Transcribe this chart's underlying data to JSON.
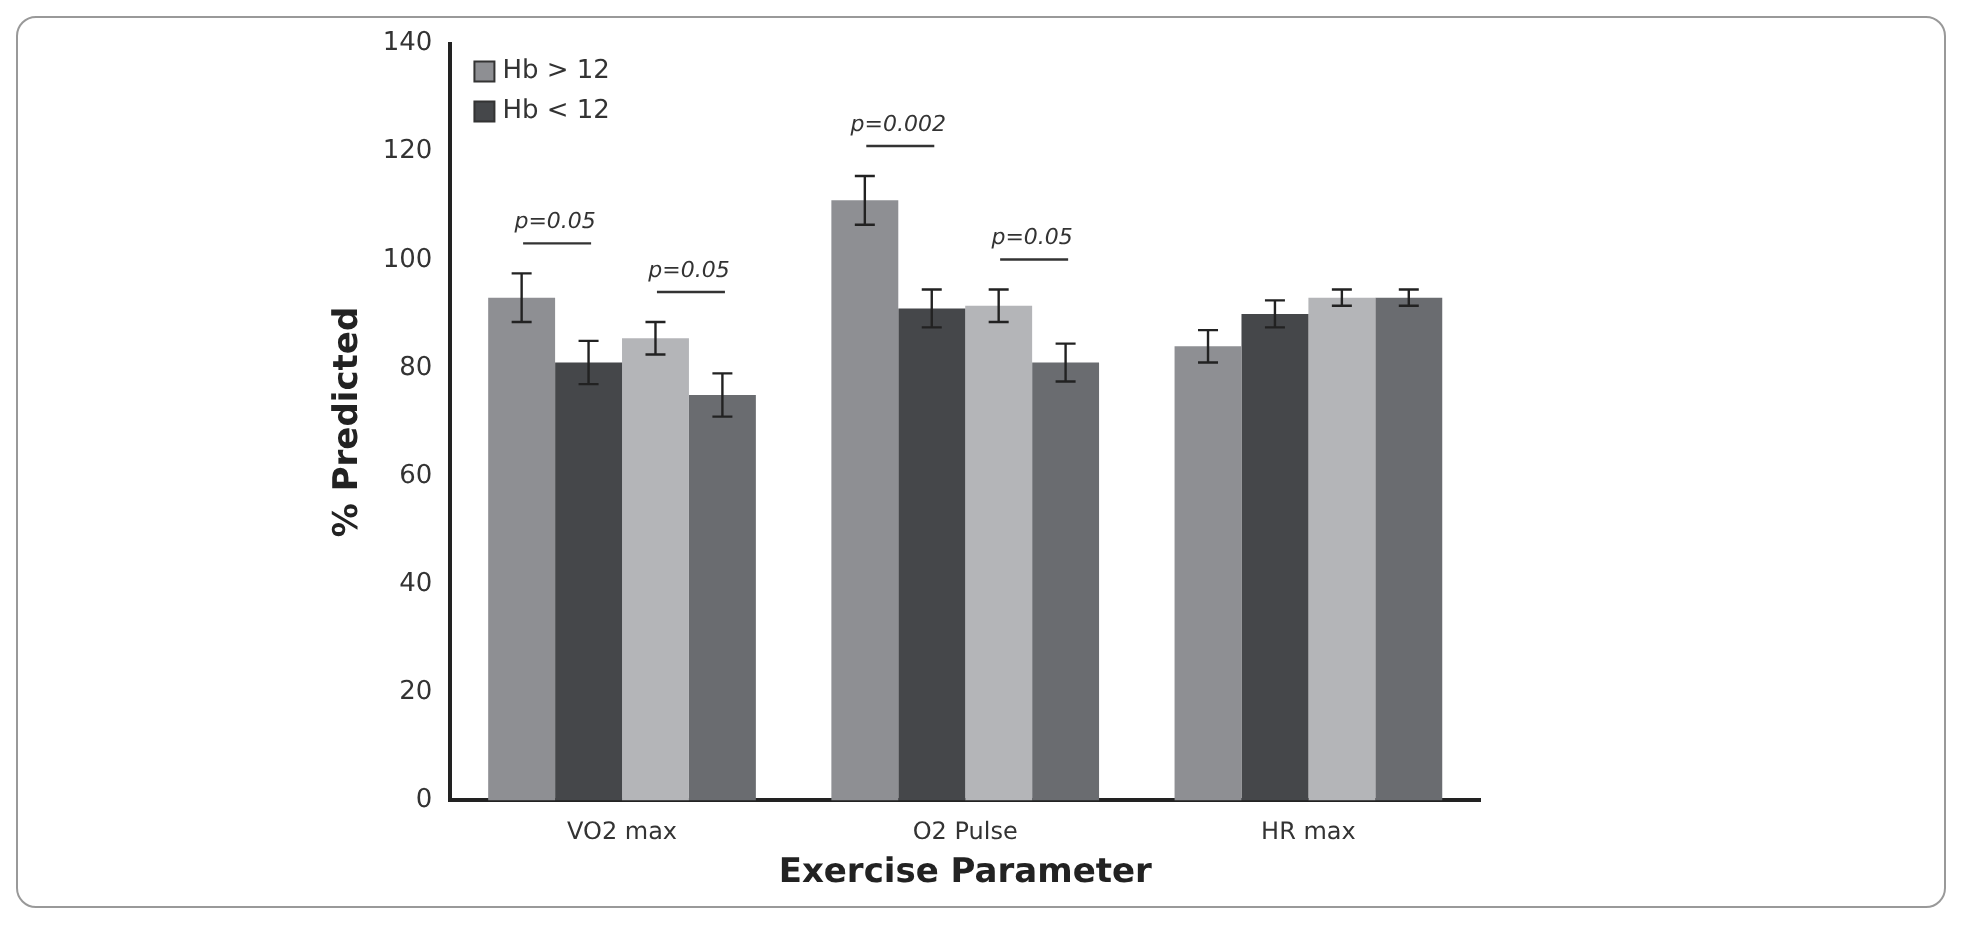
{
  "chart_data": {
    "type": "bar",
    "xlabel": "Exercise Parameter",
    "ylabel": "% Predicted",
    "categories": [
      "VO2 max",
      "O2 Pulse",
      "HR max"
    ],
    "series": [
      {
        "name": "Hb > 12",
        "color": "#8e8f93",
        "values": [
          93,
          111,
          84
        ],
        "errors": [
          4.5,
          4.5,
          3
        ]
      },
      {
        "name": "Hb < 12",
        "color": "#45474a",
        "values": [
          81,
          91,
          90
        ],
        "errors": [
          4,
          3.5,
          2.5
        ]
      },
      {
        "color": "#b4b5b8",
        "values": [
          85.5,
          91.5,
          93
        ],
        "errors": [
          3,
          3,
          1.5
        ]
      },
      {
        "color": "#6a6c70",
        "values": [
          75,
          81,
          93
        ],
        "errors": [
          4,
          3.5,
          1.5
        ]
      }
    ],
    "ylim": [
      0,
      140
    ],
    "yticks": [
      0,
      20,
      40,
      60,
      80,
      100,
      120,
      140
    ],
    "grid": false,
    "legend": "top left",
    "annotations": [
      "p=0.05",
      "p=0.05",
      "p=0.002",
      "p=0.05"
    ]
  }
}
